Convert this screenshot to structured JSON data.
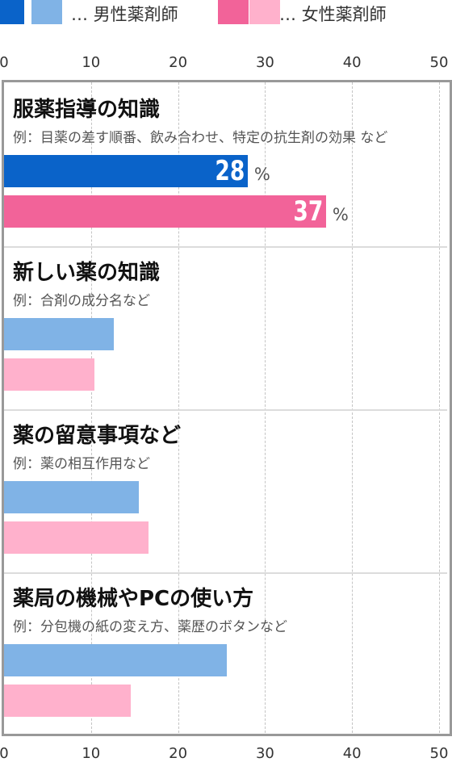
{
  "legend": [
    {
      "label": "… 男性薬剤師",
      "colors": [
        "#0a63c9",
        "#80b3e6"
      ]
    },
    {
      "label": "… 女性薬剤師",
      "colors": [
        "#f26399",
        "#ffb1cc"
      ]
    }
  ],
  "colors": {
    "male_highlight": "#0a63c9",
    "male": "#80b3e6",
    "female_highlight": "#f26399",
    "female": "#ffb1cc",
    "frame": "#999999"
  },
  "percent_sign": "%",
  "chart_data": {
    "type": "bar",
    "orientation": "horizontal",
    "xlim": [
      0,
      50
    ],
    "xticks": [
      "0",
      "10",
      "20",
      "30",
      "40",
      "50"
    ],
    "grid": true,
    "categories": [
      {
        "title": "服薬指導の知識",
        "subtitle": "例：目薬の差す順番、飲み合わせ、特定の抗生剤の効果 など",
        "highlight": true
      },
      {
        "title": "新しい薬の知識",
        "subtitle": "例：合剤の成分名など",
        "highlight": false
      },
      {
        "title": "薬の留意事項など",
        "subtitle": "例：薬の相互作用など",
        "highlight": false
      },
      {
        "title": "薬局の機械やPCの使い方",
        "subtitle": "例：分包機の紙の変え方、薬歴のボタンなど",
        "highlight": false
      }
    ],
    "series": [
      {
        "name": "男性薬剤師",
        "values": [
          28,
          12.6,
          15.5,
          25.6
        ],
        "labels": [
          "28",
          null,
          null,
          null
        ]
      },
      {
        "name": "女性薬剤師",
        "values": [
          37,
          10.4,
          16.6,
          14.6
        ],
        "labels": [
          "37",
          null,
          null,
          null
        ]
      }
    ]
  }
}
